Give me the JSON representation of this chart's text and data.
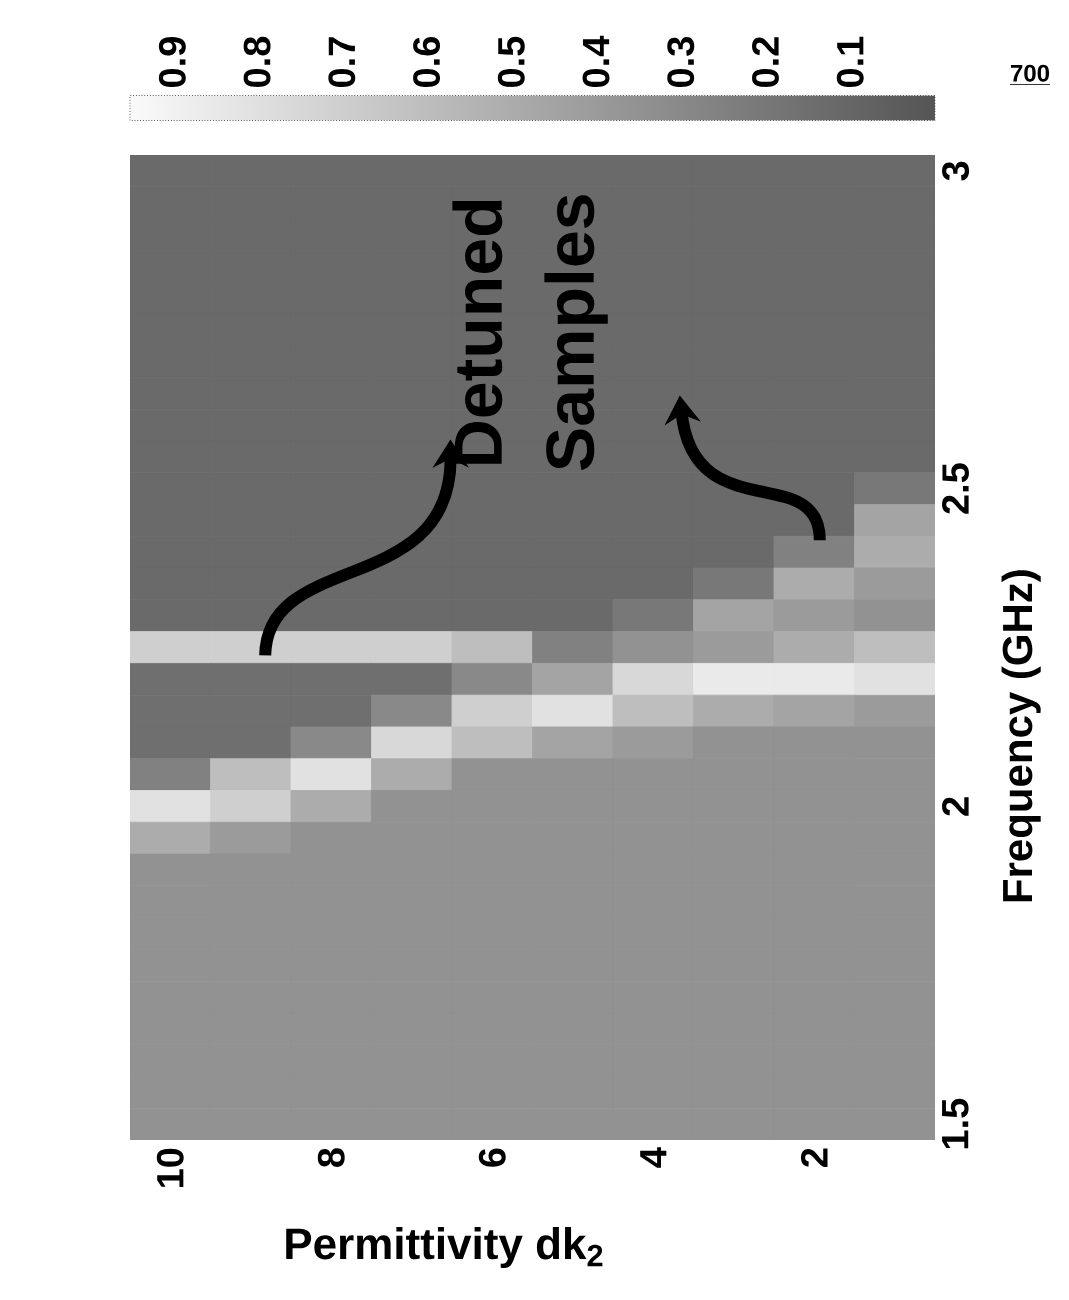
{
  "chart_data": {
    "type": "heatmap",
    "xlabel": "Permittivity dk$_{2}$",
    "ylabel": "Frequency (GHz)",
    "annotations": [
      "Detuned Samples",
      "700"
    ],
    "clim": [
      0,
      0.95
    ],
    "cticks": [
      0.1,
      0.2,
      0.3,
      0.4,
      0.5,
      0.6,
      0.7,
      0.8,
      0.9
    ],
    "categories": [
      "10",
      null,
      "8",
      null,
      "6",
      null,
      "4",
      null,
      "2",
      null
    ],
    "y_categories": [
      "3",
      null,
      null,
      null,
      null,
      null,
      null,
      null,
      null,
      null,
      "2.5",
      null,
      null,
      null,
      null,
      null,
      null,
      null,
      null,
      null,
      "2",
      null,
      null,
      null,
      null,
      null,
      null,
      null,
      null,
      null,
      "1.5"
    ],
    "cells": [
      [
        0.12,
        0.12,
        0.12,
        0.12,
        0.12,
        0.12,
        0.12,
        0.12,
        0.12,
        0.12
      ],
      [
        0.12,
        0.12,
        0.12,
        0.12,
        0.12,
        0.12,
        0.12,
        0.12,
        0.12,
        0.12
      ],
      [
        0.12,
        0.12,
        0.12,
        0.12,
        0.12,
        0.12,
        0.12,
        0.12,
        0.12,
        0.12
      ],
      [
        0.12,
        0.12,
        0.12,
        0.12,
        0.12,
        0.12,
        0.12,
        0.12,
        0.12,
        0.12
      ],
      [
        0.12,
        0.12,
        0.12,
        0.12,
        0.12,
        0.12,
        0.12,
        0.12,
        0.12,
        0.12
      ],
      [
        0.12,
        0.12,
        0.12,
        0.12,
        0.12,
        0.12,
        0.12,
        0.12,
        0.12,
        0.12
      ],
      [
        0.12,
        0.12,
        0.12,
        0.12,
        0.12,
        0.12,
        0.12,
        0.12,
        0.12,
        0.12
      ],
      [
        0.12,
        0.12,
        0.12,
        0.12,
        0.12,
        0.12,
        0.12,
        0.12,
        0.12,
        0.12
      ],
      [
        0.12,
        0.12,
        0.12,
        0.12,
        0.12,
        0.12,
        0.12,
        0.12,
        0.12,
        0.12
      ],
      [
        0.12,
        0.12,
        0.12,
        0.12,
        0.12,
        0.12,
        0.12,
        0.12,
        0.12,
        0.12
      ],
      [
        0.12,
        0.12,
        0.12,
        0.12,
        0.12,
        0.12,
        0.12,
        0.12,
        0.12,
        0.2
      ],
      [
        0.12,
        0.12,
        0.12,
        0.12,
        0.12,
        0.12,
        0.12,
        0.12,
        0.12,
        0.45
      ],
      [
        0.12,
        0.12,
        0.12,
        0.12,
        0.12,
        0.12,
        0.12,
        0.12,
        0.25,
        0.5
      ],
      [
        0.12,
        0.12,
        0.12,
        0.12,
        0.12,
        0.12,
        0.12,
        0.2,
        0.5,
        0.4
      ],
      [
        0.12,
        0.12,
        0.12,
        0.12,
        0.12,
        0.12,
        0.2,
        0.45,
        0.4,
        0.35
      ],
      [
        0.7,
        0.7,
        0.7,
        0.7,
        0.6,
        0.25,
        0.35,
        0.4,
        0.5,
        0.6
      ],
      [
        0.15,
        0.15,
        0.15,
        0.15,
        0.3,
        0.45,
        0.75,
        0.85,
        0.85,
        0.8
      ],
      [
        0.15,
        0.15,
        0.15,
        0.3,
        0.7,
        0.8,
        0.6,
        0.5,
        0.45,
        0.4
      ],
      [
        0.15,
        0.15,
        0.3,
        0.75,
        0.6,
        0.45,
        0.4,
        0.35,
        0.35,
        0.35
      ],
      [
        0.25,
        0.6,
        0.8,
        0.5,
        0.35,
        0.35,
        0.35,
        0.35,
        0.35,
        0.35
      ],
      [
        0.8,
        0.7,
        0.5,
        0.35,
        0.35,
        0.35,
        0.35,
        0.35,
        0.35,
        0.35
      ],
      [
        0.5,
        0.4,
        0.35,
        0.35,
        0.35,
        0.35,
        0.35,
        0.35,
        0.35,
        0.35
      ],
      [
        0.35,
        0.35,
        0.35,
        0.35,
        0.35,
        0.35,
        0.35,
        0.35,
        0.35,
        0.35
      ],
      [
        0.35,
        0.35,
        0.35,
        0.35,
        0.35,
        0.35,
        0.35,
        0.35,
        0.35,
        0.35
      ],
      [
        0.35,
        0.35,
        0.35,
        0.35,
        0.35,
        0.35,
        0.35,
        0.35,
        0.35,
        0.35
      ],
      [
        0.35,
        0.35,
        0.35,
        0.35,
        0.35,
        0.35,
        0.35,
        0.35,
        0.35,
        0.35
      ],
      [
        0.35,
        0.35,
        0.35,
        0.35,
        0.35,
        0.35,
        0.35,
        0.35,
        0.35,
        0.35
      ],
      [
        0.35,
        0.35,
        0.35,
        0.35,
        0.35,
        0.35,
        0.35,
        0.35,
        0.35,
        0.35
      ],
      [
        0.35,
        0.35,
        0.35,
        0.35,
        0.35,
        0.35,
        0.35,
        0.35,
        0.35,
        0.35
      ],
      [
        0.35,
        0.35,
        0.35,
        0.35,
        0.35,
        0.35,
        0.35,
        0.35,
        0.35,
        0.35
      ],
      [
        0.35,
        0.35,
        0.35,
        0.35,
        0.35,
        0.35,
        0.35,
        0.35,
        0.35,
        0.35
      ]
    ]
  }
}
